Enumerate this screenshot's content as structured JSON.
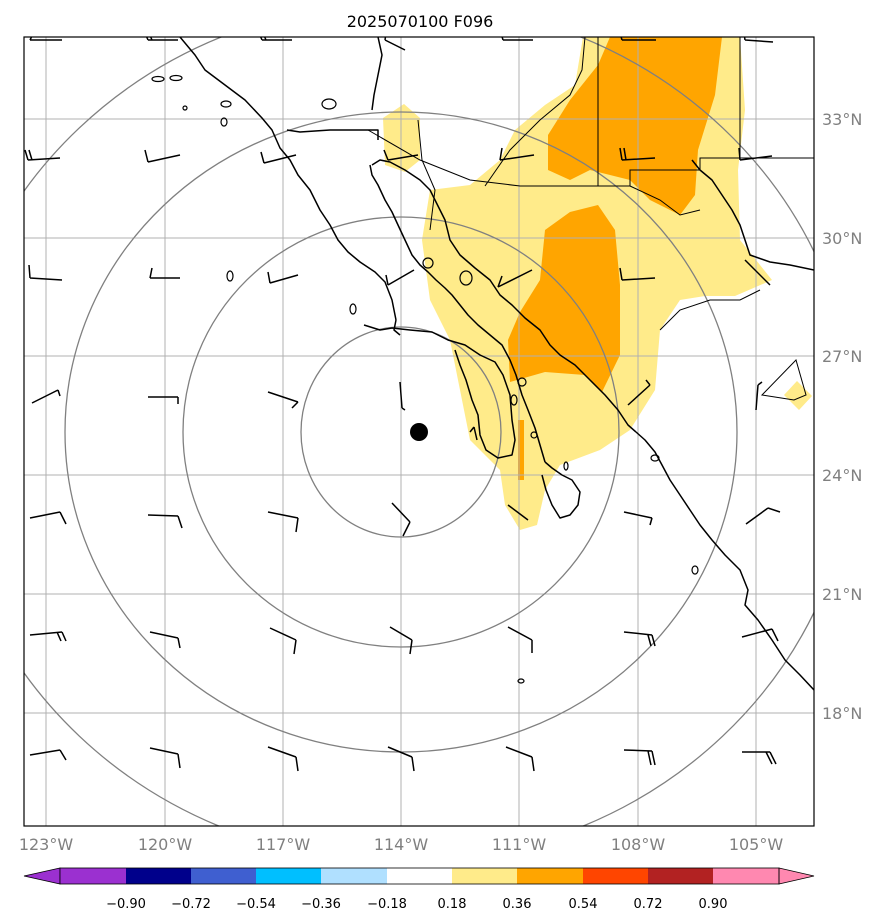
{
  "title": "2025070100 F096",
  "map": {
    "lon_range": [
      -124,
      -103.5
    ],
    "lat_range": [
      15,
      35
    ],
    "lon_ticks": [
      {
        "value": -123,
        "label": "123°W"
      },
      {
        "value": -120,
        "label": "120°W"
      },
      {
        "value": -117,
        "label": "117°W"
      },
      {
        "value": -114,
        "label": "114°W"
      },
      {
        "value": -111,
        "label": "111°W"
      },
      {
        "value": -108,
        "label": "108°W"
      },
      {
        "value": -105,
        "label": "105°W"
      }
    ],
    "lat_ticks": [
      {
        "value": 18,
        "label": "18°N"
      },
      {
        "value": 21,
        "label": "21°N"
      },
      {
        "value": 24,
        "label": "24°N"
      },
      {
        "value": 27,
        "label": "27°N"
      },
      {
        "value": 30,
        "label": "30°N"
      },
      {
        "value": 33,
        "label": "33°N"
      }
    ],
    "gridlines": true,
    "center_marker": {
      "lon": -113.6,
      "lat": 25.0
    },
    "range_rings_deg": [
      3,
      6,
      9,
      12
    ]
  },
  "colorbar": {
    "ticks": [
      "−0.90",
      "−0.72",
      "−0.54",
      "−0.36",
      "−0.18",
      "0.18",
      "0.36",
      "0.54",
      "0.72",
      "0.90"
    ],
    "colors": [
      "#9b30d0",
      "#00008b",
      "#3f5fd0",
      "#00bfff",
      "#b0e0ff",
      "#ffffff",
      "#ffeb8a",
      "#ffa500",
      "#ff4500",
      "#b22222",
      "#ff88b0"
    ]
  },
  "colors": {
    "light_positive": "#ffeb8a",
    "medium_positive": "#ffa500",
    "grid": "#b0b0b0",
    "rings": "#808080",
    "coast": "#000000"
  }
}
